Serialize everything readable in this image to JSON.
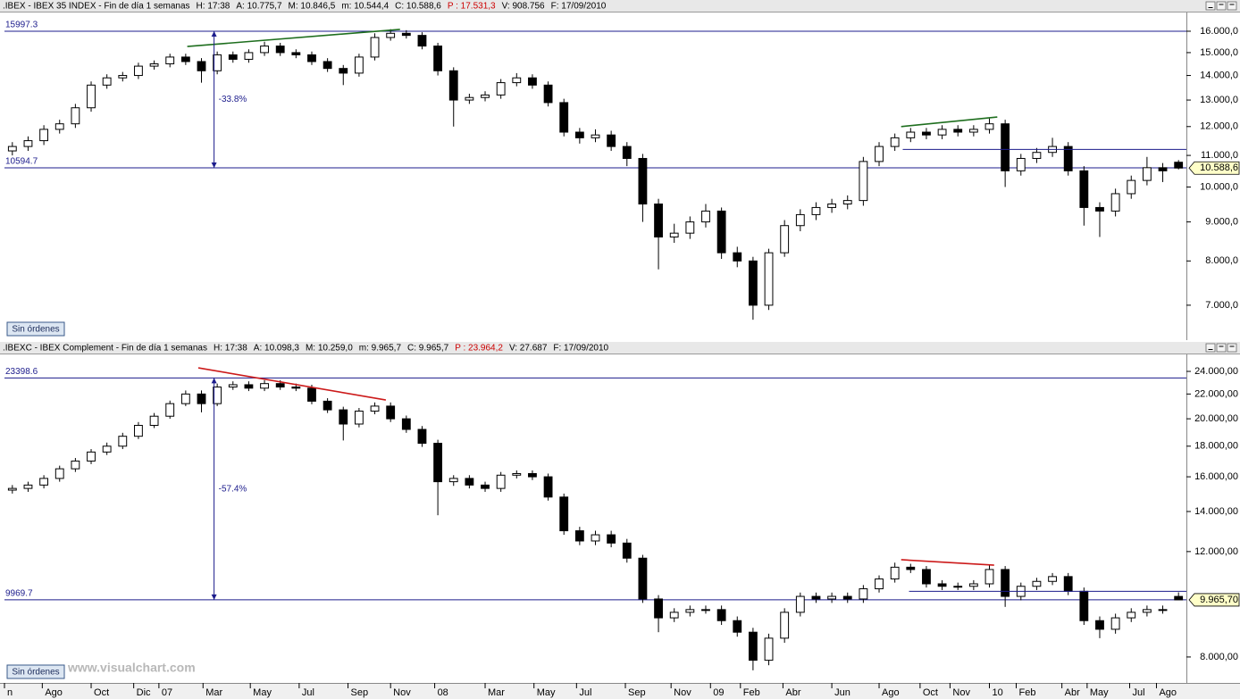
{
  "chart_data": [
    {
      "type": "candlestick",
      "header": [
        {
          "text": ".IBEX - IBEX 35 INDEX - Fin de día 1 semanas",
          "color": "#000000"
        },
        {
          "text": "H: 17:38",
          "color": "#000000"
        },
        {
          "text": "A: 10.775,7",
          "color": "#000000"
        },
        {
          "text": "M: 10.846,5",
          "color": "#000000"
        },
        {
          "text": "m: 10.544,4",
          "color": "#000000"
        },
        {
          "text": "C: 10.588,6",
          "color": "#000000"
        },
        {
          "text": "P : 17.531,3",
          "color": "#cc0000"
        },
        {
          "text": "V: 908.756",
          "color": "#000000"
        },
        {
          "text": "F: 17/09/2010",
          "color": "#000000"
        }
      ],
      "open": [
        11150,
        11300,
        11500,
        11900,
        12100,
        12700,
        13600,
        13900,
        14000,
        14400,
        14500,
        14800,
        14600,
        14200,
        14900,
        14700,
        15000,
        15300,
        15000,
        14900,
        14600,
        14300,
        14100,
        14800,
        15700,
        15900,
        15800,
        15300,
        14200,
        13000,
        13100,
        13200,
        13700,
        13900,
        13600,
        12900,
        11800,
        11600,
        11700,
        11300,
        10900,
        9500,
        8600,
        8700,
        9000,
        9300,
        8200,
        8000,
        7000,
        8200,
        8900,
        9200,
        9400,
        9500,
        9600,
        10800,
        11300,
        11600,
        11800,
        11700,
        11900,
        11800,
        11900,
        12100,
        10500,
        10900,
        11100,
        11300,
        10500,
        9400,
        9300,
        9800,
        10200,
        10600,
        10775.7
      ],
      "high": [
        11450,
        11650,
        12050,
        12250,
        12850,
        13750,
        14050,
        14150,
        14550,
        14650,
        14950,
        14950,
        14750,
        15050,
        15050,
        15150,
        15500,
        15450,
        15150,
        15050,
        14750,
        14450,
        14950,
        15900,
        16100,
        16050,
        15950,
        15450,
        14350,
        13250,
        13350,
        13850,
        14100,
        14050,
        13750,
        13050,
        11950,
        11900,
        11850,
        11450,
        11050,
        9650,
        8950,
        9150,
        9500,
        9400,
        8350,
        8100,
        8300,
        9050,
        9350,
        9550,
        9650,
        9750,
        10950,
        11450,
        11750,
        11950,
        11950,
        12050,
        12050,
        12050,
        12300,
        12250,
        11050,
        11250,
        11600,
        11450,
        10650,
        9550,
        9950,
        10350,
        10950,
        10750,
        10846.5
      ],
      "low": [
        11000,
        11150,
        11350,
        11750,
        11950,
        12550,
        13450,
        13750,
        13850,
        14250,
        14350,
        14450,
        13700,
        14050,
        14550,
        14550,
        14850,
        14850,
        14750,
        14450,
        14150,
        13600,
        13950,
        14650,
        15550,
        15650,
        15150,
        14000,
        12000,
        12850,
        12950,
        13050,
        13550,
        13450,
        12750,
        11650,
        11400,
        11450,
        11150,
        10650,
        9000,
        7800,
        8450,
        8550,
        8850,
        8050,
        7850,
        6700,
        6900,
        8100,
        8750,
        9050,
        9250,
        9350,
        9450,
        10650,
        11150,
        11450,
        11550,
        11550,
        11650,
        11650,
        11750,
        10000,
        10350,
        10750,
        10950,
        10350,
        8900,
        8600,
        9150,
        9650,
        10050,
        10150,
        10544.4
      ],
      "close": [
        11300,
        11500,
        11900,
        12100,
        12700,
        13600,
        13900,
        14000,
        14400,
        14500,
        14800,
        14600,
        14200,
        14900,
        14700,
        15000,
        15300,
        15000,
        14900,
        14600,
        14300,
        14100,
        14800,
        15700,
        15900,
        15800,
        15300,
        14200,
        13000,
        13100,
        13200,
        13700,
        13900,
        13600,
        12900,
        11800,
        11600,
        11700,
        11300,
        10900,
        9500,
        8600,
        8700,
        9000,
        9300,
        8200,
        8000,
        7000,
        8200,
        8900,
        9200,
        9400,
        9500,
        9600,
        10800,
        11300,
        11600,
        11800,
        11700,
        11900,
        11800,
        11900,
        12100,
        10500,
        10900,
        11100,
        11300,
        10500,
        9400,
        9300,
        9800,
        10200,
        10600,
        10500,
        10588.6
      ],
      "last_label": "10.588,6",
      "up_color": "#ffffff",
      "down_color": "#000000",
      "edge_color": "#000000",
      "log_scale": true,
      "xlim": [
        -0.5,
        74.5
      ],
      "ylim": [
        6300,
        16930
      ],
      "yticks": [
        {
          "value": 16000,
          "label": "16.000,0"
        },
        {
          "value": 15000,
          "label": "15.000,0"
        },
        {
          "value": 14000,
          "label": "14.000,0"
        },
        {
          "value": 13000,
          "label": "13.000,0"
        },
        {
          "value": 12000,
          "label": "12.000,0"
        },
        {
          "value": 11000,
          "label": "11.000,0"
        },
        {
          "value": 10000,
          "label": "10.000,0"
        },
        {
          "value": 9000,
          "label": "9.000,0"
        },
        {
          "value": 8000,
          "label": "8.000,0"
        },
        {
          "value": 7000,
          "label": "7.000,0"
        }
      ],
      "reference_lines": [
        15997.3,
        10594.7
      ],
      "reference_color": "#1c1c8c",
      "trendlines": [
        {
          "x": [
            11.1,
            24.6
          ],
          "y": [
            15280,
            16090
          ],
          "color": "#1e6e1e"
        },
        {
          "x": [
            56.4,
            62.5
          ],
          "y": [
            12000,
            12350
          ],
          "color": "#1e6e1e"
        },
        {
          "x": [
            56.5,
            74.5
          ],
          "y": [
            11200,
            11200
          ],
          "color": "#1c1c8c"
        }
      ],
      "arrows": [
        {
          "x": 12.8,
          "from": 15997.3,
          "to": 10594.7,
          "label": "-33.8%"
        }
      ],
      "orders_button": "Sin órdenes"
    },
    {
      "type": "candlestick",
      "header": [
        {
          "text": ".IBEXC - IBEX Complement - Fin de día 1 semanas",
          "color": "#000000"
        },
        {
          "text": "H: 17:38",
          "color": "#000000"
        },
        {
          "text": "A: 10.098,3",
          "color": "#000000"
        },
        {
          "text": "M: 10.259,0",
          "color": "#000000"
        },
        {
          "text": "m: 9.965,7",
          "color": "#000000"
        },
        {
          "text": "C: 9.965,7",
          "color": "#000000"
        },
        {
          "text": "P : 23.964,2",
          "color": "#cc0000"
        },
        {
          "text": "V: 27.687",
          "color": "#000000"
        },
        {
          "text": "F: 17/09/2010",
          "color": "#000000"
        }
      ],
      "open": [
        15200,
        15300,
        15500,
        15900,
        16500,
        17000,
        17600,
        18000,
        18700,
        19500,
        20200,
        21200,
        22000,
        21200,
        22600,
        22800,
        22500,
        22900,
        22600,
        22500,
        21400,
        20700,
        19600,
        20600,
        21000,
        20000,
        19200,
        18200,
        15700,
        15900,
        15500,
        15300,
        16100,
        16200,
        16000,
        14800,
        13000,
        12500,
        12800,
        12400,
        11700,
        10000,
        9300,
        9500,
        9600,
        9600,
        9200,
        8800,
        7900,
        8600,
        9500,
        10100,
        10000,
        10100,
        10000,
        10400,
        10800,
        11300,
        11200,
        10600,
        10500,
        10500,
        10600,
        11200,
        10100,
        10500,
        10700,
        10900,
        10300,
        9200,
        8900,
        9300,
        9500,
        9600,
        10098.3
      ],
      "high": [
        15500,
        15700,
        16100,
        16700,
        17200,
        17800,
        18250,
        18950,
        19750,
        20450,
        21450,
        22300,
        22300,
        22900,
        23100,
        23100,
        23200,
        23200,
        22900,
        22800,
        21650,
        20950,
        20850,
        21300,
        21300,
        20250,
        19450,
        18450,
        16100,
        16100,
        15700,
        16300,
        16400,
        16400,
        16200,
        15000,
        13200,
        13000,
        13000,
        12600,
        11850,
        10150,
        9650,
        9750,
        9750,
        9750,
        9350,
        8950,
        8750,
        9650,
        10250,
        10250,
        10250,
        10250,
        10550,
        10950,
        11500,
        11450,
        11350,
        10750,
        10650,
        10750,
        11400,
        11350,
        10650,
        10850,
        11050,
        11050,
        10450,
        9350,
        9450,
        9650,
        9750,
        9750,
        10259
      ],
      "low": [
        15000,
        15100,
        15300,
        15700,
        16300,
        16800,
        17400,
        17800,
        18500,
        19300,
        20000,
        21000,
        20500,
        21000,
        22350,
        22250,
        22250,
        22350,
        22250,
        21150,
        20450,
        18400,
        19350,
        20350,
        19750,
        18950,
        17950,
        13800,
        15450,
        15300,
        15100,
        15100,
        15900,
        15800,
        14600,
        12800,
        12300,
        12300,
        12200,
        11500,
        9850,
        8800,
        9150,
        9350,
        9450,
        9050,
        8650,
        7600,
        7750,
        8450,
        9350,
        9850,
        9850,
        9850,
        9850,
        10250,
        10650,
        11050,
        10450,
        10350,
        10350,
        10350,
        10450,
        9700,
        9950,
        10350,
        10550,
        10150,
        9050,
        8600,
        8750,
        9150,
        9350,
        9450,
        9965.7
      ],
      "close": [
        15300,
        15500,
        15900,
        16500,
        17000,
        17600,
        18000,
        18700,
        19500,
        20200,
        21200,
        22000,
        21200,
        22600,
        22800,
        22500,
        22900,
        22600,
        22500,
        21400,
        20700,
        19600,
        20600,
        21000,
        20000,
        19200,
        18200,
        15700,
        15900,
        15500,
        15300,
        16100,
        16200,
        16000,
        14800,
        13000,
        12500,
        12800,
        12400,
        11700,
        10000,
        9300,
        9500,
        9600,
        9600,
        9200,
        8800,
        7900,
        8600,
        9500,
        10100,
        10000,
        10100,
        10000,
        10400,
        10800,
        11300,
        11200,
        10600,
        10500,
        10500,
        10600,
        11200,
        10100,
        10500,
        10700,
        10900,
        10300,
        9200,
        8900,
        9300,
        9500,
        9600,
        9600,
        9965.7
      ],
      "last_label": "9.965,70",
      "up_color": "#ffffff",
      "down_color": "#000000",
      "edge_color": "#000000",
      "log_scale": true,
      "xlim": [
        -0.5,
        74.5
      ],
      "ylim": [
        7240,
        25620
      ],
      "yticks": [
        {
          "value": 24000,
          "label": "24.000,00"
        },
        {
          "value": 22000,
          "label": "22.000,00"
        },
        {
          "value": 20000,
          "label": "20.000,00"
        },
        {
          "value": 18000,
          "label": "18.000,00"
        },
        {
          "value": 16000,
          "label": "16.000,00"
        },
        {
          "value": 14000,
          "label": "14.000,00"
        },
        {
          "value": 12000,
          "label": "12.000,00"
        },
        {
          "value": 8000,
          "label": "8.000,00"
        }
      ],
      "reference_lines": [
        23398.6,
        9969.7
      ],
      "reference_color": "#1c1c8c",
      "trendlines": [
        {
          "x": [
            11.8,
            23.7
          ],
          "y": [
            24330,
            21500
          ],
          "color": "#cc1a1a"
        },
        {
          "x": [
            56.4,
            62.3
          ],
          "y": [
            11630,
            11390
          ],
          "color": "#cc1a1a"
        },
        {
          "x": [
            56.9,
            74.5
          ],
          "y": [
            10300,
            10300
          ],
          "color": "#1c1c8c"
        }
      ],
      "arrows": [
        {
          "x": 12.8,
          "from": 23398.6,
          "to": 9969.7,
          "label": "-57.4%"
        }
      ],
      "orders_button": "Sin órdenes",
      "xticks": [
        {
          "value": -0.5,
          "label": "n"
        },
        {
          "value": 1.9,
          "label": "Ago"
        },
        {
          "value": 5.0,
          "label": "Oct"
        },
        {
          "value": 7.7,
          "label": "Dic"
        },
        {
          "value": 9.3,
          "label": "07"
        },
        {
          "value": 12.1,
          "label": "Mar"
        },
        {
          "value": 15.1,
          "label": "May"
        },
        {
          "value": 18.2,
          "label": "Jul"
        },
        {
          "value": 21.3,
          "label": "Sep"
        },
        {
          "value": 24.0,
          "label": "Nov"
        },
        {
          "value": 26.8,
          "label": "08"
        },
        {
          "value": 30.0,
          "label": "Mar"
        },
        {
          "value": 33.1,
          "label": "May"
        },
        {
          "value": 35.8,
          "label": "Jul"
        },
        {
          "value": 38.9,
          "label": "Sep"
        },
        {
          "value": 41.8,
          "label": "Nov"
        },
        {
          "value": 44.3,
          "label": "09"
        },
        {
          "value": 46.2,
          "label": "Feb"
        },
        {
          "value": 48.9,
          "label": "Abr"
        },
        {
          "value": 52.0,
          "label": "Jun"
        },
        {
          "value": 55.0,
          "label": "Ago"
        },
        {
          "value": 57.6,
          "label": "Oct"
        },
        {
          "value": 59.5,
          "label": "Nov"
        },
        {
          "value": 62.0,
          "label": "10"
        },
        {
          "value": 63.7,
          "label": "Feb"
        },
        {
          "value": 66.6,
          "label": "Abr"
        },
        {
          "value": 68.2,
          "label": "May"
        },
        {
          "value": 70.9,
          "label": "Jul"
        },
        {
          "value": 72.6,
          "label": "Ago"
        }
      ]
    }
  ],
  "watermark": "www.visualchart.com"
}
